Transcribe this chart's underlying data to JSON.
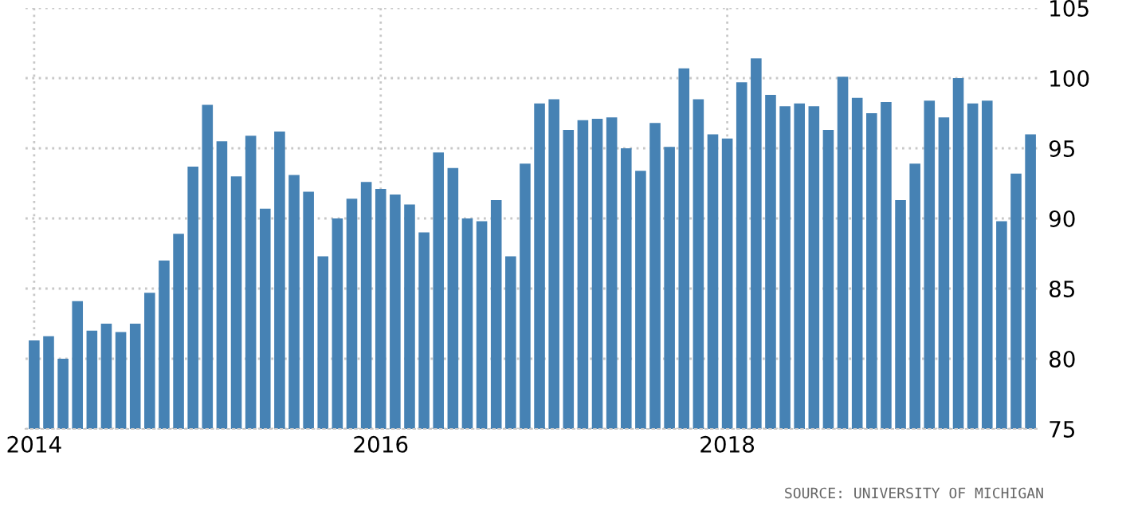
{
  "chart_data": {
    "type": "bar",
    "categories": [
      "2014",
      null,
      null,
      null,
      null,
      null,
      null,
      null,
      null,
      null,
      null,
      null,
      null,
      null,
      null,
      null,
      null,
      null,
      null,
      null,
      null,
      null,
      null,
      null,
      "2016",
      null,
      null,
      null,
      null,
      null,
      null,
      null,
      null,
      null,
      null,
      null,
      null,
      null,
      null,
      null,
      null,
      null,
      null,
      null,
      null,
      null,
      null,
      null,
      "2018",
      null,
      null,
      null,
      null,
      null,
      null,
      null,
      null,
      null,
      null,
      null,
      null,
      null,
      null,
      null,
      null,
      null,
      null,
      null,
      null,
      null
    ],
    "values": [
      81.3,
      81.6,
      80.0,
      84.1,
      82.0,
      82.5,
      81.9,
      82.5,
      84.7,
      87.0,
      88.9,
      93.7,
      98.1,
      95.5,
      93.0,
      95.9,
      90.7,
      96.2,
      93.1,
      91.9,
      87.3,
      90.0,
      91.4,
      92.6,
      92.1,
      91.7,
      91.0,
      89.0,
      94.7,
      93.6,
      90.0,
      89.8,
      91.3,
      87.3,
      93.9,
      98.2,
      98.5,
      96.3,
      97.0,
      97.1,
      97.2,
      95.0,
      93.4,
      96.8,
      95.1,
      100.7,
      98.5,
      96.0,
      95.7,
      99.7,
      101.4,
      98.8,
      98.0,
      98.2,
      98.0,
      96.3,
      100.1,
      98.6,
      97.5,
      98.3,
      91.3,
      93.9,
      98.4,
      97.2,
      100.0,
      98.2,
      98.4,
      89.8,
      93.2,
      96.0
    ],
    "color": "#4682b4",
    "ylim": [
      75,
      105
    ],
    "yticks": [
      75,
      80,
      85,
      90,
      95,
      100,
      105
    ],
    "grid": true,
    "annotations": [
      "SOURCE: UNIVERSITY OF MICHIGAN"
    ]
  }
}
